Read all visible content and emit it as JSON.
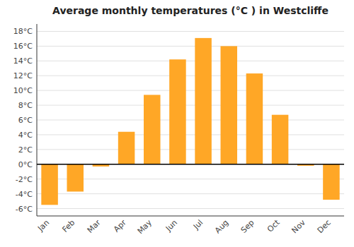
{
  "chart_data": {
    "type": "bar",
    "title": "Average monthly temperatures (°C ) in Westcliffe",
    "categories": [
      "Jan",
      "Feb",
      "Mar",
      "Apr",
      "May",
      "Jun",
      "Jul",
      "Aug",
      "Sep",
      "Oct",
      "Nov",
      "Dec"
    ],
    "values": [
      -5.5,
      -3.7,
      -0.3,
      4.4,
      9.4,
      14.2,
      17.1,
      16.0,
      12.3,
      6.7,
      -0.2,
      -4.8
    ],
    "color": "#FFA726",
    "ylim": [
      -7,
      19
    ],
    "yticks": [
      {
        "value": -6,
        "label": "-6°C"
      },
      {
        "value": -4,
        "label": "-4°C"
      },
      {
        "value": -2,
        "label": "-2°C"
      },
      {
        "value": 0,
        "label": "0°C"
      },
      {
        "value": 2,
        "label": "2°C"
      },
      {
        "value": 4,
        "label": "4°C"
      },
      {
        "value": 6,
        "label": "6°C"
      },
      {
        "value": 8,
        "label": "8°C"
      },
      {
        "value": 10,
        "label": "10°C"
      },
      {
        "value": 12,
        "label": "12°C"
      },
      {
        "value": 14,
        "label": "14°C"
      },
      {
        "value": 16,
        "label": "16°C"
      },
      {
        "value": 18,
        "label": "18°C"
      }
    ],
    "grid": true
  }
}
